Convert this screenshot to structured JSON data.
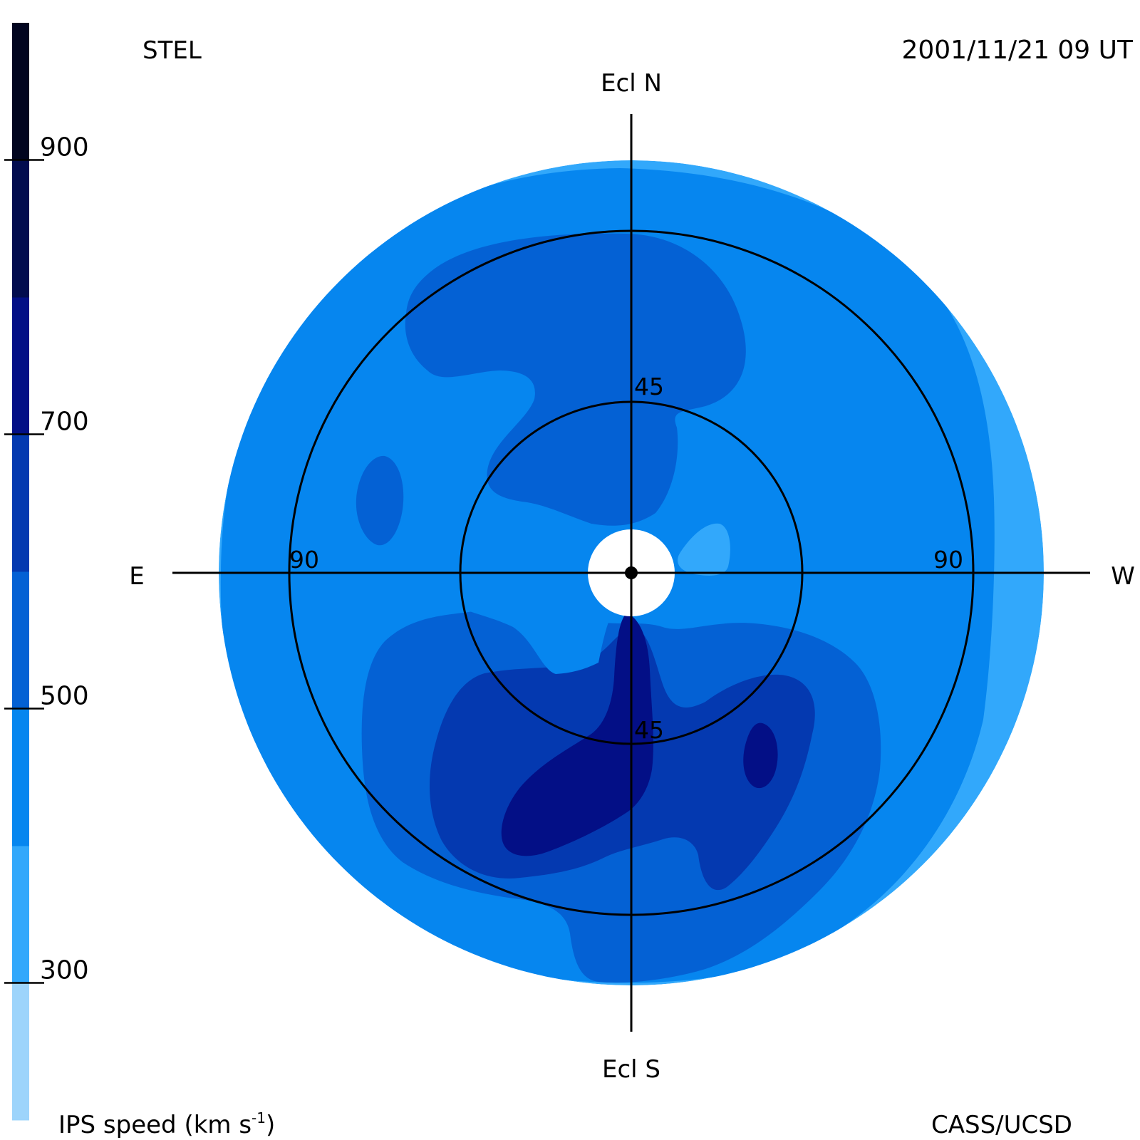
{
  "header": {
    "observatory": "STEL",
    "datetime": "2001/11/21 09 UT"
  },
  "footer": {
    "colorbar_title": "IPS speed (km s",
    "colorbar_title_exp": "-1",
    "colorbar_title_end": ")",
    "credit": "CASS/UCSD"
  },
  "directions": {
    "north": "Ecl N",
    "south": "Ecl S",
    "east": "E",
    "west": "W"
  },
  "rings": {
    "inner_north": "45",
    "inner_south": "45",
    "outer_east": "90",
    "outer_west": "90"
  },
  "colorbar": {
    "ticks": [
      {
        "value": 900,
        "label": "900"
      },
      {
        "value": 700,
        "label": "700"
      },
      {
        "value": 500,
        "label": "500"
      },
      {
        "value": 300,
        "label": "300"
      }
    ],
    "bands": [
      {
        "from": 200,
        "to": 300,
        "color": "#9dd4fb"
      },
      {
        "from": 300,
        "to": 400,
        "color": "#32a8fb"
      },
      {
        "from": 400,
        "to": 500,
        "color": "#0686ef"
      },
      {
        "from": 500,
        "to": 600,
        "color": "#0461d4"
      },
      {
        "from": 600,
        "to": 700,
        "color": "#0439b0"
      },
      {
        "from": 700,
        "to": 800,
        "color": "#030f86"
      },
      {
        "from": 800,
        "to": 900,
        "color": "#020c4f"
      },
      {
        "from": 900,
        "to": 1000,
        "color": "#01051f"
      }
    ]
  },
  "colors": {
    "speed_300_400": "#32a8fb",
    "speed_400_500": "#0686ef",
    "speed_500_600": "#0461d4",
    "speed_600_700": "#0439b0",
    "speed_700_800": "#030f86"
  }
}
